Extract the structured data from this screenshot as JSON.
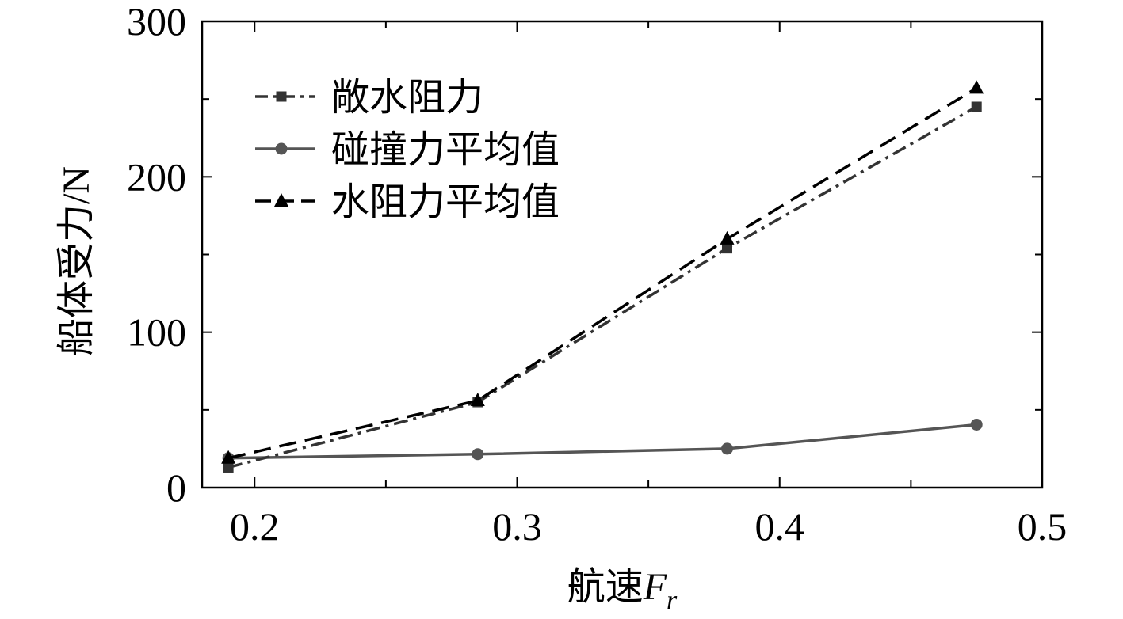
{
  "chart_data": {
    "type": "line",
    "title": "",
    "xlabel": "航速",
    "xlabel_symbol": "F",
    "xlabel_subscript": "r",
    "ylabel": "船体受力/N",
    "xlim": [
      0.18,
      0.5
    ],
    "ylim": [
      0,
      300
    ],
    "xticks": [
      0.2,
      0.3,
      0.4,
      0.5
    ],
    "xtick_labels": [
      "0.2",
      "0.3",
      "0.4",
      "0.5"
    ],
    "yticks": [
      0,
      100,
      200,
      300
    ],
    "ytick_labels": [
      "0",
      "100",
      "200",
      "300"
    ],
    "legend_position": "top-left",
    "grid": false,
    "series": [
      {
        "name": "敞水阻力",
        "x": [
          0.19,
          0.285,
          0.38,
          0.475
        ],
        "values": [
          13,
          55,
          154,
          245
        ],
        "color": "#333333",
        "line_style": "dash-dot",
        "marker": "square"
      },
      {
        "name": "碰撞力平均值",
        "x": [
          0.19,
          0.285,
          0.38,
          0.475
        ],
        "values": [
          19,
          21.5,
          25,
          40.5
        ],
        "color": "#555555",
        "line_style": "solid",
        "marker": "circle"
      },
      {
        "name": "水阻力平均值",
        "x": [
          0.19,
          0.285,
          0.38,
          0.475
        ],
        "values": [
          19,
          56,
          160,
          257
        ],
        "color": "#000000",
        "line_style": "dashed",
        "marker": "triangle"
      }
    ]
  }
}
